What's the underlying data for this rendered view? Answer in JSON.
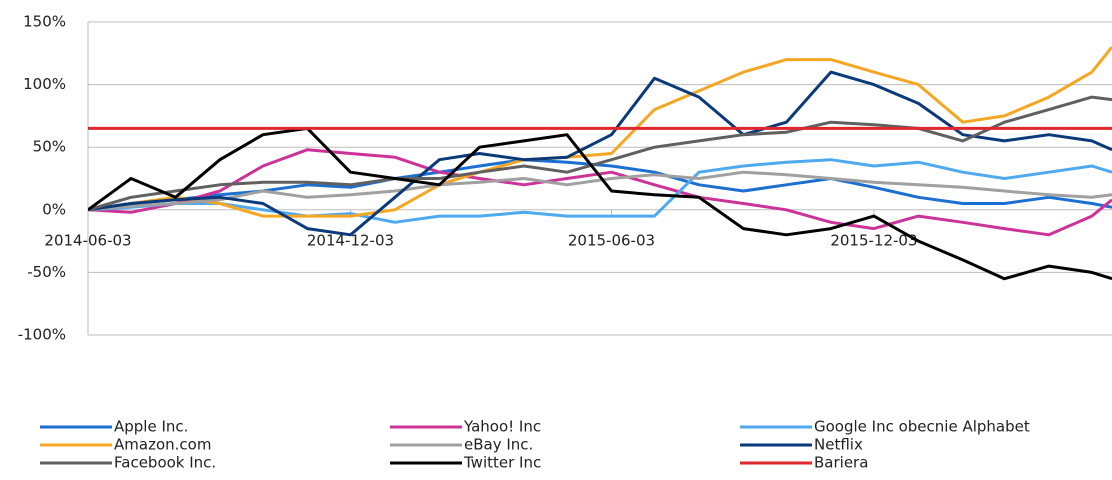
{
  "chart_data": {
    "type": "line",
    "x": [
      "2014-06-03",
      "2014-07-03",
      "2014-08-03",
      "2014-09-03",
      "2014-10-03",
      "2014-11-03",
      "2014-12-03",
      "2015-01-03",
      "2015-02-03",
      "2015-03-03",
      "2015-04-03",
      "2015-05-03",
      "2015-06-03",
      "2015-07-03",
      "2015-08-03",
      "2015-09-03",
      "2015-10-03",
      "2015-11-03",
      "2015-12-03",
      "2016-01-03",
      "2016-02-03",
      "2016-03-03",
      "2016-04-03",
      "2016-05-03",
      "2016-05-17"
    ],
    "xlim": [
      "2014-06-03",
      "2016-05-17"
    ],
    "xticks": [
      "2014-06-03",
      "2014-12-03",
      "2015-06-03",
      "2015-12-03"
    ],
    "ylim": [
      -100,
      150
    ],
    "yticks": [
      {
        "value": -100,
        "label": "-100%"
      },
      {
        "value": -50,
        "label": "-50%"
      },
      {
        "value": 0,
        "label": "0%"
      },
      {
        "value": 50,
        "label": "50%"
      },
      {
        "value": 100,
        "label": "100%"
      },
      {
        "value": 150,
        "label": "150%"
      }
    ],
    "grid": true,
    "series": [
      {
        "name": "Apple Inc.",
        "color": "#1a6fd1",
        "values": [
          0,
          5,
          8,
          12,
          15,
          20,
          18,
          25,
          30,
          35,
          40,
          38,
          35,
          30,
          20,
          15,
          20,
          25,
          18,
          10,
          5,
          5,
          10,
          5,
          2
        ]
      },
      {
        "name": "Yahoo! Inc",
        "color": "#cc3399",
        "values": [
          0,
          -2,
          5,
          15,
          35,
          48,
          45,
          42,
          30,
          25,
          20,
          25,
          30,
          20,
          10,
          5,
          0,
          -10,
          -15,
          -5,
          -10,
          -15,
          -20,
          -5,
          8
        ]
      },
      {
        "name": "Google Inc obecnie Alphabet",
        "color": "#4fa9ee",
        "values": [
          0,
          2,
          5,
          5,
          0,
          -5,
          -3,
          -10,
          -5,
          -5,
          -2,
          -5,
          -5,
          -5,
          30,
          35,
          38,
          40,
          35,
          38,
          30,
          25,
          30,
          35,
          30
        ]
      },
      {
        "name": "Amazon.com",
        "color": "#f5a623",
        "values": [
          0,
          5,
          10,
          5,
          -5,
          -5,
          -5,
          0,
          20,
          30,
          40,
          42,
          45,
          80,
          95,
          110,
          120,
          120,
          110,
          100,
          70,
          75,
          90,
          110,
          130
        ]
      },
      {
        "name": "eBay Inc.",
        "color": "#a0a0a0",
        "values": [
          0,
          3,
          5,
          8,
          15,
          10,
          12,
          15,
          20,
          22,
          25,
          20,
          25,
          28,
          25,
          30,
          28,
          25,
          22,
          20,
          18,
          15,
          12,
          10,
          12
        ]
      },
      {
        "name": "Netflix",
        "color": "#0a3a7a",
        "values": [
          0,
          5,
          8,
          10,
          5,
          -15,
          -20,
          10,
          40,
          45,
          40,
          42,
          60,
          105,
          90,
          60,
          70,
          110,
          100,
          85,
          60,
          55,
          60,
          55,
          48
        ]
      },
      {
        "name": "Facebook Inc.",
        "color": "#606060",
        "values": [
          0,
          10,
          15,
          20,
          22,
          22,
          20,
          25,
          25,
          30,
          35,
          30,
          40,
          50,
          55,
          60,
          62,
          70,
          68,
          65,
          55,
          70,
          80,
          90,
          88
        ]
      },
      {
        "name": "Twitter Inc",
        "color": "#000000",
        "values": [
          0,
          25,
          10,
          40,
          60,
          65,
          30,
          25,
          20,
          50,
          55,
          60,
          15,
          12,
          10,
          -15,
          -20,
          -15,
          -5,
          -25,
          -40,
          -55,
          -45,
          -50,
          -55
        ]
      },
      {
        "name": "Bariera",
        "color": "#e0262e",
        "values": [
          65,
          65,
          65,
          65,
          65,
          65,
          65,
          65,
          65,
          65,
          65,
          65,
          65,
          65,
          65,
          65,
          65,
          65,
          65,
          65,
          65,
          65,
          65,
          65,
          65
        ]
      }
    ]
  }
}
